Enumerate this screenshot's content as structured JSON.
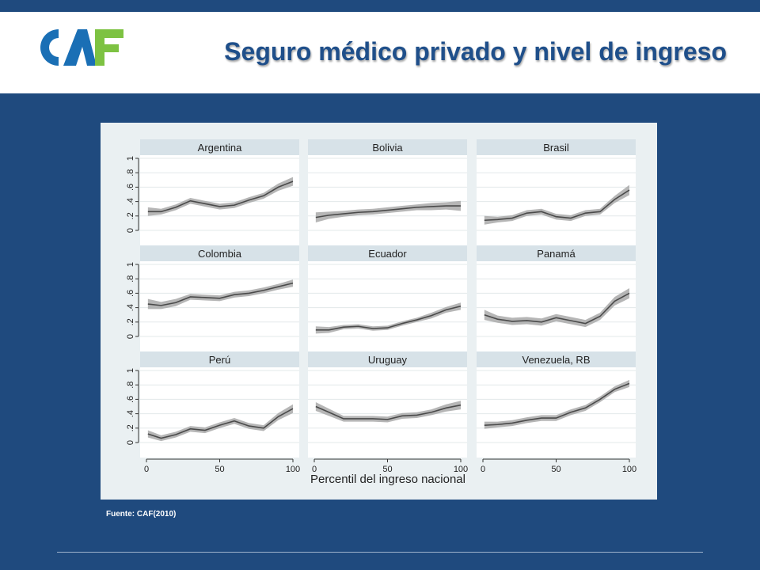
{
  "header": {
    "logo_text": "CAF",
    "title": "Seguro médico privado y nivel de ingreso"
  },
  "colors": {
    "background": "#1f4a7e",
    "title": "#1f4f8a",
    "logo_blue": "#1a6fb5",
    "logo_green": "#7dc242",
    "panel_bg": "#eaf0f2",
    "strip_bg": "#d7e2e8",
    "line": "#4a4a4a",
    "ci_band": "#a9a9a9"
  },
  "footer": {
    "source": "Fuente: CAF(2010)"
  },
  "chart_data": {
    "type": "line",
    "xlabel": "Percentil del ingreso nacional",
    "ylabel": "",
    "xlim": [
      0,
      100
    ],
    "ylim": [
      0,
      1
    ],
    "x_ticks": [
      "0",
      "50",
      "100"
    ],
    "y_ticks": [
      "0",
      ".2",
      ".4",
      ".6",
      ".8",
      "1"
    ],
    "x": [
      1,
      10,
      20,
      30,
      40,
      50,
      60,
      70,
      80,
      90,
      100
    ],
    "grid": true,
    "panels": [
      {
        "name": "Argentina",
        "values": [
          0.26,
          0.26,
          0.32,
          0.41,
          0.37,
          0.33,
          0.35,
          0.42,
          0.48,
          0.6,
          0.68
        ],
        "band": [
          0.06,
          0.04,
          0.04,
          0.04,
          0.04,
          0.04,
          0.04,
          0.04,
          0.04,
          0.05,
          0.06
        ]
      },
      {
        "name": "Bolivia",
        "values": [
          0.18,
          0.21,
          0.23,
          0.25,
          0.26,
          0.28,
          0.3,
          0.32,
          0.33,
          0.34,
          0.34
        ],
        "band": [
          0.07,
          0.05,
          0.04,
          0.04,
          0.04,
          0.04,
          0.04,
          0.04,
          0.05,
          0.05,
          0.07
        ]
      },
      {
        "name": "Brasil",
        "values": [
          0.14,
          0.15,
          0.17,
          0.24,
          0.26,
          0.19,
          0.17,
          0.24,
          0.26,
          0.43,
          0.56
        ],
        "band": [
          0.06,
          0.04,
          0.04,
          0.04,
          0.04,
          0.04,
          0.04,
          0.04,
          0.04,
          0.05,
          0.07
        ]
      },
      {
        "name": "Colombia",
        "values": [
          0.45,
          0.43,
          0.47,
          0.55,
          0.54,
          0.53,
          0.58,
          0.6,
          0.64,
          0.69,
          0.74
        ],
        "band": [
          0.07,
          0.05,
          0.05,
          0.04,
          0.04,
          0.04,
          0.04,
          0.04,
          0.04,
          0.04,
          0.05
        ]
      },
      {
        "name": "Ecuador",
        "values": [
          0.09,
          0.09,
          0.13,
          0.14,
          0.11,
          0.12,
          0.18,
          0.23,
          0.29,
          0.37,
          0.42
        ],
        "band": [
          0.05,
          0.04,
          0.03,
          0.03,
          0.03,
          0.03,
          0.03,
          0.03,
          0.04,
          0.04,
          0.05
        ]
      },
      {
        "name": "Panamá",
        "values": [
          0.3,
          0.24,
          0.21,
          0.22,
          0.2,
          0.26,
          0.22,
          0.18,
          0.28,
          0.49,
          0.6
        ],
        "band": [
          0.07,
          0.05,
          0.05,
          0.05,
          0.05,
          0.05,
          0.05,
          0.05,
          0.05,
          0.06,
          0.07
        ]
      },
      {
        "name": "Perú",
        "values": [
          0.12,
          0.06,
          0.11,
          0.19,
          0.17,
          0.24,
          0.3,
          0.23,
          0.2,
          0.36,
          0.47
        ],
        "band": [
          0.05,
          0.04,
          0.04,
          0.04,
          0.04,
          0.04,
          0.04,
          0.04,
          0.04,
          0.05,
          0.06
        ]
      },
      {
        "name": "Uruguay",
        "values": [
          0.5,
          0.42,
          0.33,
          0.33,
          0.33,
          0.32,
          0.37,
          0.38,
          0.42,
          0.48,
          0.52
        ],
        "band": [
          0.06,
          0.05,
          0.04,
          0.04,
          0.04,
          0.04,
          0.04,
          0.04,
          0.04,
          0.05,
          0.06
        ]
      },
      {
        "name": "Venezuela, RB",
        "values": [
          0.24,
          0.25,
          0.27,
          0.31,
          0.34,
          0.34,
          0.42,
          0.48,
          0.6,
          0.74,
          0.82
        ],
        "band": [
          0.05,
          0.04,
          0.04,
          0.04,
          0.04,
          0.04,
          0.04,
          0.04,
          0.04,
          0.04,
          0.05
        ]
      }
    ]
  }
}
